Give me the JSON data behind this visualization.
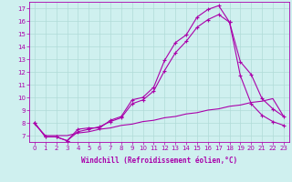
{
  "xlabel": "Windchill (Refroidissement éolien,°C)",
  "xlim": [
    -0.5,
    23.5
  ],
  "ylim": [
    6.5,
    17.5
  ],
  "xticks": [
    0,
    1,
    2,
    3,
    4,
    5,
    6,
    7,
    8,
    9,
    10,
    11,
    12,
    13,
    14,
    15,
    16,
    17,
    18,
    19,
    20,
    21,
    22,
    23
  ],
  "yticks": [
    7,
    8,
    9,
    10,
    11,
    12,
    13,
    14,
    15,
    16,
    17
  ],
  "background_color": "#cff0ef",
  "grid_color": "#b0dbd8",
  "line_color": "#aa00aa",
  "line1_x": [
    0,
    1,
    2,
    3,
    4,
    5,
    6,
    7,
    8,
    9,
    10,
    11,
    12,
    13,
    14,
    15,
    16,
    17,
    18,
    19,
    20,
    21,
    22,
    23
  ],
  "line1_y": [
    8.0,
    6.9,
    6.9,
    6.6,
    7.5,
    7.6,
    7.6,
    8.2,
    8.5,
    9.8,
    10.0,
    10.8,
    12.9,
    14.3,
    14.9,
    16.3,
    16.9,
    17.2,
    15.9,
    12.8,
    11.8,
    9.9,
    9.1,
    8.5
  ],
  "line2_x": [
    0,
    1,
    2,
    3,
    4,
    5,
    6,
    7,
    8,
    9,
    10,
    11,
    12,
    13,
    14,
    15,
    16,
    17,
    18,
    19,
    20,
    21,
    22,
    23
  ],
  "line2_y": [
    8.0,
    6.9,
    6.9,
    6.6,
    7.3,
    7.5,
    7.7,
    8.1,
    8.4,
    9.5,
    9.8,
    10.5,
    12.1,
    13.5,
    14.4,
    15.5,
    16.1,
    16.5,
    15.9,
    11.7,
    9.5,
    8.6,
    8.1,
    7.8
  ],
  "line3_x": [
    0,
    1,
    2,
    3,
    4,
    5,
    6,
    7,
    8,
    9,
    10,
    11,
    12,
    13,
    14,
    15,
    16,
    17,
    18,
    19,
    20,
    21,
    22,
    23
  ],
  "line3_y": [
    7.9,
    7.0,
    7.0,
    7.0,
    7.2,
    7.3,
    7.5,
    7.6,
    7.8,
    7.9,
    8.1,
    8.2,
    8.4,
    8.5,
    8.7,
    8.8,
    9.0,
    9.1,
    9.3,
    9.4,
    9.6,
    9.7,
    9.9,
    8.5
  ],
  "tick_fontsize": 5.0,
  "xlabel_fontsize": 5.5
}
